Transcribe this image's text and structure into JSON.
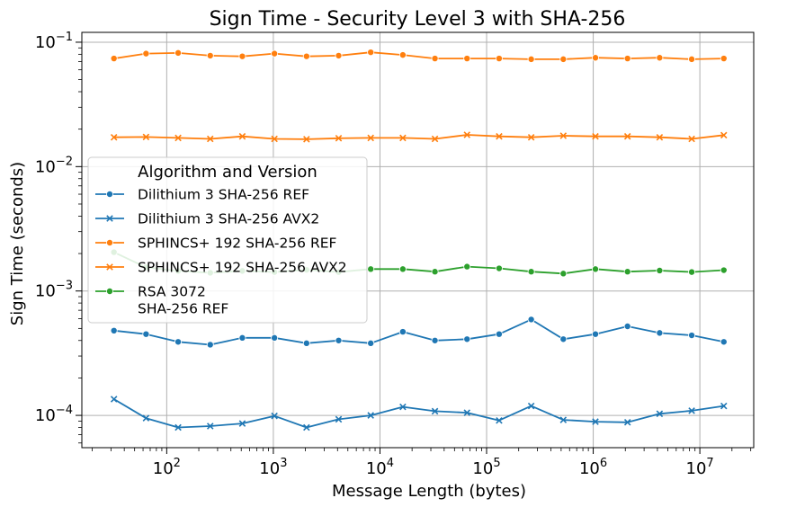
{
  "chart_data": {
    "type": "line",
    "title": "Sign Time - Security Level 3 with SHA-256",
    "xlabel": "Message Length (bytes)",
    "ylabel": "Sign Time (seconds)",
    "xscale": "log",
    "yscale": "log",
    "xlim": [
      16,
      32000000
    ],
    "ylim": [
      5.5e-05,
      0.12
    ],
    "grid": true,
    "legend": {
      "title": "Algorithm and Version",
      "placement": "center-left"
    },
    "x_ticks": [
      {
        "base": "10",
        "exp": "2",
        "value": 100
      },
      {
        "base": "10",
        "exp": "3",
        "value": 1000
      },
      {
        "base": "10",
        "exp": "4",
        "value": 10000
      },
      {
        "base": "10",
        "exp": "5",
        "value": 100000
      },
      {
        "base": "10",
        "exp": "6",
        "value": 1000000
      },
      {
        "base": "10",
        "exp": "7",
        "value": 10000000
      }
    ],
    "y_ticks": [
      {
        "base": "10",
        "exp": "−4",
        "value": 0.0001
      },
      {
        "base": "10",
        "exp": "−3",
        "value": 0.001
      },
      {
        "base": "10",
        "exp": "−2",
        "value": 0.01
      },
      {
        "base": "10",
        "exp": "−1",
        "value": 0.1
      }
    ],
    "x": [
      32,
      64,
      128,
      256,
      512,
      1024,
      2048,
      4096,
      8192,
      16384,
      32768,
      65536,
      131072,
      262144,
      524288,
      1048576,
      2097152,
      4194304,
      8388608,
      16777216
    ],
    "series": [
      {
        "name": "Dilithium 3 SHA-256 REF",
        "color": "#1f77b4",
        "marker": "circle",
        "values": [
          0.00048,
          0.00045,
          0.00039,
          0.00037,
          0.00042,
          0.00042,
          0.00038,
          0.0004,
          0.00038,
          0.00047,
          0.0004,
          0.00041,
          0.00045,
          0.00059,
          0.00041,
          0.00045,
          0.00052,
          0.00046,
          0.00044,
          0.00039
        ]
      },
      {
        "name": "Dilithium 3 SHA-256 AVX2",
        "color": "#1f77b4",
        "marker": "x",
        "values": [
          0.000135,
          9.5e-05,
          8e-05,
          8.2e-05,
          8.6e-05,
          9.9e-05,
          8e-05,
          9.3e-05,
          0.0001,
          0.000117,
          0.000108,
          0.000105,
          9.1e-05,
          0.000119,
          9.2e-05,
          8.9e-05,
          8.8e-05,
          0.000103,
          0.000109,
          0.000119
        ]
      },
      {
        "name": "SPHINCS+ 192 SHA-256 REF",
        "color": "#ff7f0e",
        "marker": "circle",
        "values": [
          0.074,
          0.081,
          0.082,
          0.078,
          0.077,
          0.081,
          0.077,
          0.078,
          0.083,
          0.079,
          0.074,
          0.074,
          0.074,
          0.073,
          0.073,
          0.075,
          0.074,
          0.075,
          0.073,
          0.074
        ]
      },
      {
        "name": "SPHINCS+ 192 SHA-256 AVX2",
        "color": "#ff7f0e",
        "marker": "x",
        "values": [
          0.0172,
          0.0173,
          0.017,
          0.0167,
          0.0175,
          0.0167,
          0.0166,
          0.0169,
          0.017,
          0.017,
          0.0167,
          0.018,
          0.0175,
          0.0172,
          0.0177,
          0.0175,
          0.0175,
          0.0172,
          0.0167,
          0.0179
        ]
      },
      {
        "name": "RSA 3072\nSHA-256 REF",
        "color": "#2ca02c",
        "marker": "circle",
        "values": [
          0.00205,
          0.00155,
          0.00145,
          0.0014,
          0.00145,
          0.00142,
          0.00148,
          0.00142,
          0.0015,
          0.0015,
          0.00143,
          0.00157,
          0.00152,
          0.00143,
          0.00138,
          0.0015,
          0.00143,
          0.00146,
          0.00142,
          0.00147
        ]
      }
    ]
  }
}
